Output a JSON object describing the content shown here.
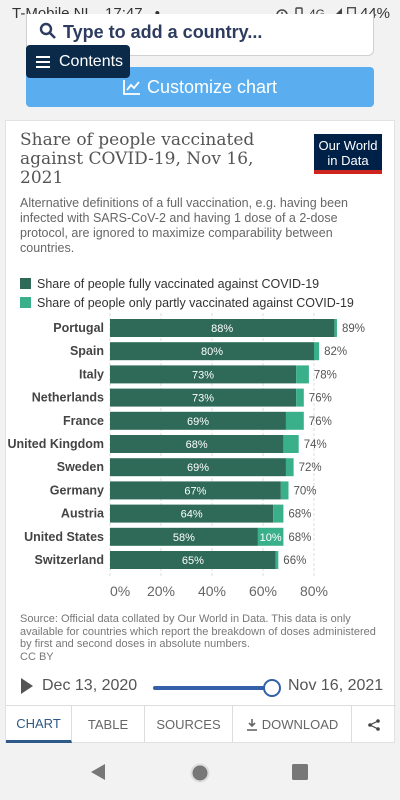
{
  "status": {
    "carrier": "T-Mobile NL",
    "time": "17:47",
    "dot": "•",
    "network": "4G",
    "battery": "44%"
  },
  "top": {
    "search_placeholder": "Type to add a country...",
    "contents_label": "Contents",
    "customize_label": "Customize chart"
  },
  "chart": {
    "title": "Share of people vaccinated against COVID-19, Nov 16, 2021",
    "subtitle": "Alternative definitions of a full vaccination, e.g. having been infected with SARS-CoV-2 and having 1 dose of a 2-dose protocol, are ignored to maximize comparability between countries.",
    "logo_line1": "Our World",
    "logo_line2": "in Data",
    "source": "Source: Official data collated by Our World in Data. This data is only available for countries which report the breakdown of doses administered by first and second doses in absolute numbers.",
    "license": "CC BY"
  },
  "colors": {
    "full": "#2e6a57",
    "partial": "#3ab08a",
    "accent": "#3360a9",
    "logo_bg": "#002147",
    "logo_bar": "#ce261e"
  },
  "timeline": {
    "start": "Dec 13, 2020",
    "end": "Nov 16, 2021",
    "position": 1.0
  },
  "tabs": [
    {
      "label": "CHART",
      "active": true
    },
    {
      "label": "TABLE",
      "active": false
    },
    {
      "label": "SOURCES",
      "active": false
    },
    {
      "label": "DOWNLOAD",
      "active": false,
      "icon": "download-icon"
    },
    {
      "label": "",
      "active": false,
      "icon": "share-icon"
    }
  ],
  "chart_data": {
    "type": "bar",
    "orientation": "horizontal",
    "stacked": true,
    "categories": [
      "Portugal",
      "Spain",
      "Italy",
      "Netherlands",
      "France",
      "United Kingdom",
      "Sweden",
      "Germany",
      "Austria",
      "United States",
      "Switzerland"
    ],
    "series": [
      {
        "name": "Share of people fully vaccinated against COVID-19",
        "values": [
          88,
          80,
          73,
          73,
          69,
          68,
          69,
          67,
          64,
          58,
          65
        ],
        "labels": [
          "88%",
          "80%",
          "73%",
          "73%",
          "69%",
          "68%",
          "69%",
          "67%",
          "64%",
          "58%",
          "65%"
        ]
      },
      {
        "name": "Share of people only partly vaccinated against COVID-19",
        "values": [
          1,
          2,
          5,
          3,
          7,
          6,
          3,
          3,
          4,
          10,
          1
        ],
        "labels": [
          "",
          "",
          "",
          "",
          "",
          "",
          "",
          "",
          "",
          "10%",
          ""
        ]
      }
    ],
    "totals": [
      "89%",
      "82%",
      "78%",
      "76%",
      "76%",
      "74%",
      "72%",
      "70%",
      "68%",
      "68%",
      "66%"
    ],
    "xticks": [
      "0%",
      "20%",
      "40%",
      "60%",
      "80%"
    ],
    "xlim": [
      0,
      90
    ],
    "grid": true,
    "legend_position": "top-left"
  }
}
